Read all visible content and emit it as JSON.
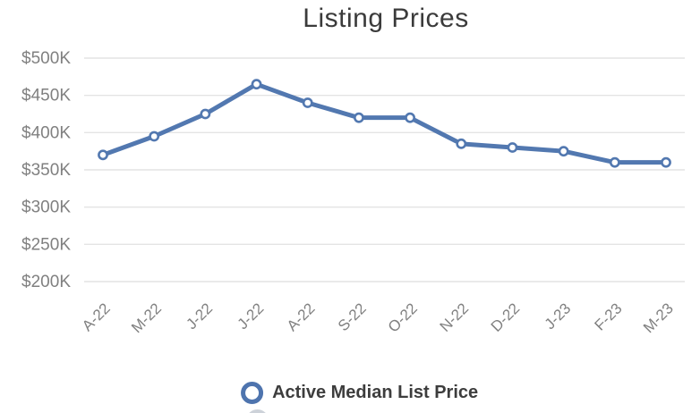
{
  "title": "Listing Prices",
  "legend": {
    "primary_label": "Active Median List Price",
    "primary_marker_color": "#4e74ae",
    "partial_second_marker_color": "#cdd2d9"
  },
  "colors": {
    "title_text": "#3b3b3b",
    "axis_label_text": "#808080",
    "gridline": "#e4e4e4",
    "series_line": "#5278b0",
    "marker_fill": "#ffffff",
    "legend_text": "#3d3d3d"
  },
  "chart_data": {
    "type": "line",
    "title": "Listing Prices",
    "categories": [
      "A-22",
      "M-22",
      "J-22",
      "J-22",
      "A-22",
      "S-22",
      "O-22",
      "N-22",
      "D-22",
      "J-23",
      "F-23",
      "M-23"
    ],
    "series": [
      {
        "name": "Active Median List Price",
        "color": "#5278b0",
        "values": [
          370000,
          395000,
          425000,
          465000,
          440000,
          420000,
          420000,
          385000,
          380000,
          375000,
          360000,
          360000
        ]
      }
    ],
    "xlabel": "",
    "ylabel": "",
    "ylim": [
      200000,
      500000
    ],
    "y_tick_step": 50000,
    "y_tick_labels_top_to_bottom": [
      "$500K",
      "$450K",
      "$400K",
      "$350K",
      "$300K",
      "$250K",
      "$200K"
    ],
    "grid": true,
    "legend_position": "bottom",
    "marker_style": "open-circle"
  }
}
